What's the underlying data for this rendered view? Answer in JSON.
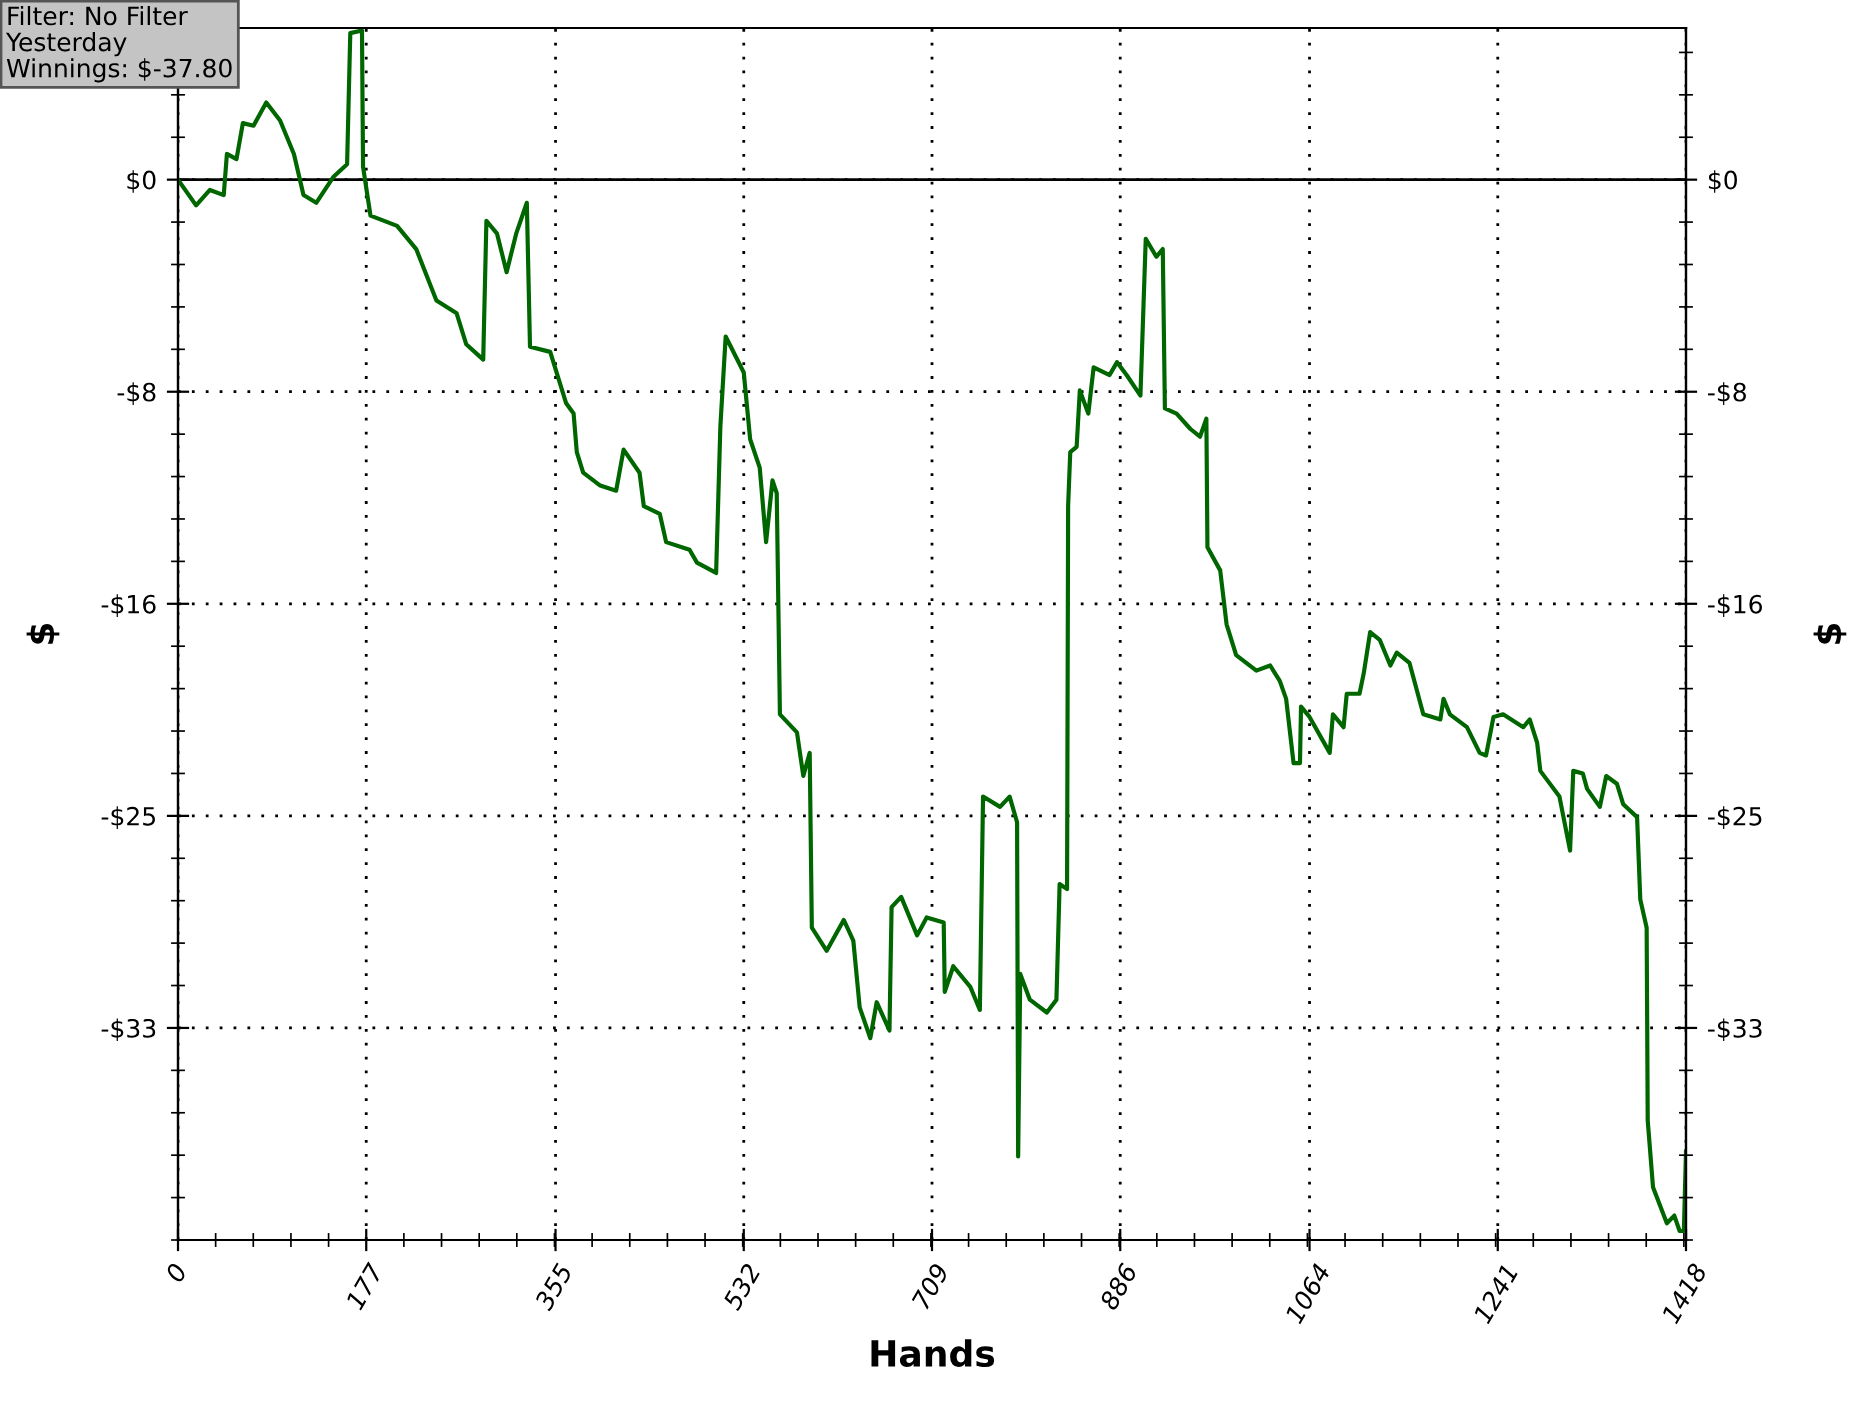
{
  "chart_data": {
    "type": "line",
    "xlabel": "Hands",
    "ylabel": "$",
    "y2label": "$",
    "annotations": [
      "Filter: No Filter\nYesterday\nWinnings: $-37.80"
    ],
    "xlim": [
      0,
      1418
    ],
    "xticks": [
      0,
      177,
      355,
      532,
      709,
      886,
      1064,
      1241,
      1418
    ],
    "ylim": [
      -41.25,
      5.9
    ],
    "yticks": [
      {
        "value": -33,
        "label": "-$33"
      },
      {
        "value": -24.75,
        "label": "-$25"
      },
      {
        "value": -16.5,
        "label": "-$16"
      },
      {
        "value": -8.25,
        "label": "-$8"
      },
      {
        "value": 0,
        "label": "$0"
      }
    ],
    "y2lim": [
      -41.25,
      5.9
    ],
    "y2ticks": [
      {
        "value": -33,
        "label": "-$33"
      },
      {
        "value": -24.75,
        "label": "-$25"
      },
      {
        "value": -16.5,
        "label": "-$16"
      },
      {
        "value": -8.25,
        "label": "-$8"
      },
      {
        "value": 0,
        "label": "$0"
      }
    ],
    "grid": true,
    "marker": "none",
    "line_style": "solid",
    "ref_lines": [
      {
        "axis": "y",
        "value": 0,
        "color": "#000000",
        "line_style": "solid"
      }
    ],
    "series": [
      {
        "color": "#006600",
        "x": [
          0,
          17,
          30,
          43,
          46,
          55,
          61,
          71,
          83,
          96,
          109,
          118,
          130,
          146,
          159,
          162,
          173,
          174,
          181,
          206,
          224,
          243,
          262,
          271,
          287,
          290,
          300,
          309,
          318,
          328,
          331,
          350,
          365,
          372,
          375,
          381,
          397,
          412,
          419,
          434,
          438,
          453,
          459,
          481,
          488,
          506,
          510,
          515,
          532,
          538,
          547,
          553,
          559,
          563,
          566,
          582,
          588,
          594,
          596,
          610,
          626,
          635,
          641,
          651,
          657,
          669,
          671,
          680,
          695,
          704,
          720,
          721,
          729,
          745,
          754,
          757,
          773,
          782,
          789,
          790,
          792,
          801,
          817,
          826,
          829,
          836,
          837,
          839,
          845,
          848,
          856,
          861,
          876,
          883,
          892,
          905,
          910,
          920,
          926,
          928,
          939,
          952,
          961,
          967,
          968,
          980,
          986,
          995,
          1014,
          1027,
          1036,
          1042,
          1049,
          1055,
          1056,
          1064,
          1083,
          1086,
          1096,
          1099,
          1111,
          1115,
          1121,
          1130,
          1140,
          1146,
          1158,
          1171,
          1187,
          1190,
          1196,
          1212,
          1224,
          1230,
          1237,
          1246,
          1265,
          1271,
          1278,
          1281,
          1299,
          1309,
          1312,
          1321,
          1325,
          1337,
          1343,
          1353,
          1359,
          1372,
          1375,
          1381,
          1382,
          1387,
          1400,
          1407,
          1412,
          1416,
          1418
        ],
        "values": [
          0,
          -1.0,
          -0.4,
          -0.6,
          1.0,
          0.8,
          2.2,
          2.1,
          3.0,
          2.3,
          1.0,
          -0.6,
          -0.9,
          0.1,
          0.6,
          5.7,
          5.8,
          0.5,
          -1.4,
          -1.8,
          -2.7,
          -4.7,
          -5.2,
          -6.4,
          -7.0,
          -1.6,
          -2.1,
          -3.6,
          -2.1,
          -0.9,
          -6.5,
          -6.7,
          -8.7,
          -9.1,
          -10.6,
          -11.4,
          -11.9,
          -12.1,
          -10.5,
          -11.4,
          -12.7,
          -13.0,
          -14.1,
          -14.4,
          -14.9,
          -15.3,
          -9.6,
          -6.1,
          -7.5,
          -10.1,
          -11.2,
          -14.1,
          -11.7,
          -12.2,
          -20.8,
          -21.5,
          -23.2,
          -22.3,
          -29.1,
          -30.0,
          -28.8,
          -29.6,
          -32.2,
          -33.4,
          -32.0,
          -33.1,
          -28.3,
          -27.9,
          -29.4,
          -28.7,
          -28.9,
          -31.6,
          -30.6,
          -31.4,
          -32.3,
          -24.0,
          -24.4,
          -24.0,
          -25.0,
          -38.0,
          -30.9,
          -31.9,
          -32.4,
          -31.9,
          -27.4,
          -27.6,
          -12.7,
          -10.6,
          -10.4,
          -8.2,
          -9.1,
          -7.3,
          -7.6,
          -7.1,
          -7.6,
          -8.4,
          -2.3,
          -3.0,
          -2.7,
          -8.9,
          -9.1,
          -9.7,
          -10.0,
          -9.3,
          -14.3,
          -15.2,
          -17.3,
          -18.5,
          -19.1,
          -18.9,
          -19.5,
          -20.2,
          -22.7,
          -22.7,
          -20.5,
          -20.9,
          -22.3,
          -20.8,
          -21.3,
          -20.0,
          -20.0,
          -19.2,
          -17.6,
          -17.9,
          -18.9,
          -18.4,
          -18.8,
          -20.8,
          -21.0,
          -20.2,
          -20.8,
          -21.3,
          -22.3,
          -22.4,
          -20.9,
          -20.8,
          -21.3,
          -21.0,
          -21.9,
          -23.0,
          -24.0,
          -26.1,
          -23.0,
          -23.1,
          -23.7,
          -24.4,
          -23.2,
          -23.5,
          -24.3,
          -24.8,
          -28.0,
          -29.1,
          -36.6,
          -39.2,
          -40.6,
          -40.3,
          -40.9,
          -40.9,
          -37.8
        ]
      }
    ]
  }
}
